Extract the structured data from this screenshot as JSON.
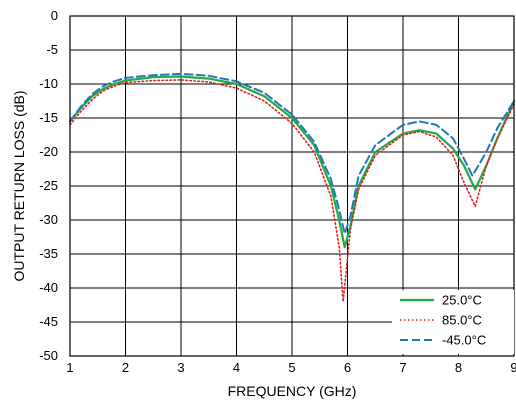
{
  "chart_data": {
    "type": "line",
    "xlabel": "FREQUENCY (GHz)",
    "ylabel": "OUTPUT RETURN LOSS (dB)",
    "xlim": [
      1,
      9
    ],
    "ylim": [
      -50,
      0
    ],
    "xticks": [
      1,
      2,
      3,
      4,
      5,
      6,
      7,
      8,
      9
    ],
    "yticks": [
      0,
      -5,
      -10,
      -15,
      -20,
      -25,
      -30,
      -35,
      -40,
      -45,
      -50
    ],
    "grid": true,
    "legend_position": "bottom-right",
    "series": [
      {
        "name": "25.0°C",
        "color": "#22aa44",
        "dash": "solid",
        "x": [
          1.0,
          1.2,
          1.4,
          1.6,
          1.8,
          2.0,
          2.5,
          3.0,
          3.5,
          4.0,
          4.5,
          5.0,
          5.4,
          5.7,
          5.85,
          5.95,
          6.05,
          6.2,
          6.5,
          7.0,
          7.3,
          7.6,
          7.9,
          8.1,
          8.3,
          8.5,
          8.7,
          9.0
        ],
        "y": [
          -15.5,
          -13.5,
          -11.8,
          -10.7,
          -10.0,
          -9.5,
          -9.0,
          -8.9,
          -9.2,
          -10.0,
          -11.8,
          -15.0,
          -19.0,
          -25.0,
          -30.0,
          -34.0,
          -31.0,
          -25.0,
          -20.0,
          -17.3,
          -16.8,
          -17.3,
          -19.5,
          -22.0,
          -25.5,
          -22.0,
          -18.0,
          -12.5
        ]
      },
      {
        "name": "85.0°C",
        "color": "#dd2222",
        "dash": "dotted",
        "x": [
          1.0,
          1.2,
          1.4,
          1.6,
          1.8,
          2.0,
          2.5,
          3.0,
          3.5,
          4.0,
          4.5,
          5.0,
          5.4,
          5.7,
          5.85,
          5.92,
          6.05,
          6.2,
          6.5,
          7.0,
          7.3,
          7.6,
          7.9,
          8.1,
          8.3,
          8.5,
          8.7,
          9.0
        ],
        "y": [
          -16.0,
          -14.0,
          -12.3,
          -11.0,
          -10.3,
          -9.8,
          -9.5,
          -9.4,
          -9.7,
          -10.6,
          -12.5,
          -15.8,
          -20.0,
          -26.5,
          -34.0,
          -42.0,
          -31.5,
          -25.5,
          -20.5,
          -17.5,
          -17.0,
          -17.8,
          -20.5,
          -24.5,
          -28.0,
          -22.0,
          -18.0,
          -13.0
        ]
      },
      {
        "name": "-45.0°C",
        "color": "#2277bb",
        "dash": "dashed",
        "x": [
          1.0,
          1.2,
          1.4,
          1.6,
          1.8,
          2.0,
          2.5,
          3.0,
          3.5,
          4.0,
          4.5,
          5.0,
          5.4,
          5.7,
          5.85,
          5.95,
          6.05,
          6.2,
          6.5,
          7.0,
          7.3,
          7.6,
          7.9,
          8.1,
          8.25,
          8.5,
          8.7,
          9.0
        ],
        "y": [
          -15.5,
          -13.3,
          -11.5,
          -10.3,
          -9.6,
          -9.1,
          -8.7,
          -8.5,
          -8.8,
          -9.6,
          -11.3,
          -14.5,
          -18.5,
          -24.0,
          -28.5,
          -32.0,
          -29.5,
          -23.5,
          -19.0,
          -16.0,
          -15.5,
          -16.0,
          -18.0,
          -21.0,
          -23.5,
          -20.0,
          -16.5,
          -12.5
        ]
      }
    ]
  }
}
